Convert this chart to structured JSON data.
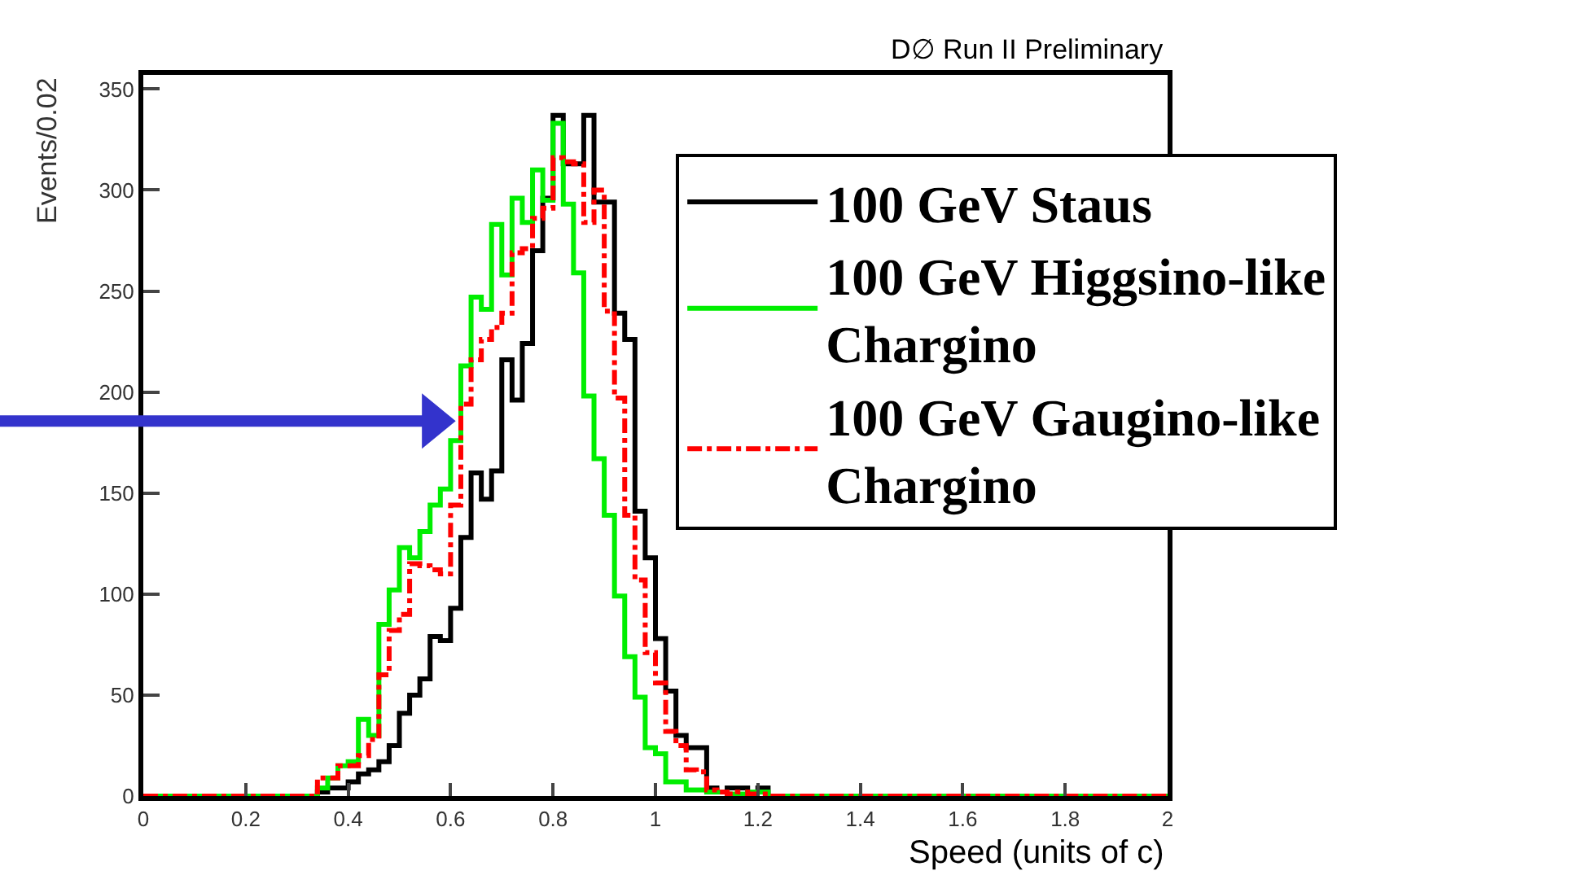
{
  "chart_data": {
    "type": "histogram",
    "title": "D∅ Run II Preliminary",
    "xlabel": "Speed (units of c)",
    "ylabel": "Events/0.02",
    "bins": [
      0,
      0.02,
      0.04,
      0.06,
      0.08,
      0.1,
      0.12,
      0.14,
      0.16,
      0.18,
      0.2,
      0.22,
      0.24,
      0.26,
      0.28,
      0.3,
      0.32,
      0.34,
      0.36,
      0.38,
      0.4,
      0.42,
      0.44,
      0.46,
      0.48,
      0.5,
      0.52,
      0.54,
      0.56,
      0.58,
      0.6,
      0.62,
      0.64,
      0.66,
      0.68,
      0.7,
      0.72,
      0.74,
      0.76,
      0.78,
      0.8,
      0.82,
      0.84,
      0.86,
      0.88,
      0.9,
      0.92,
      0.94,
      0.96,
      0.98,
      1,
      1.02,
      1.04,
      1.06,
      1.08,
      1.1,
      1.12,
      1.14,
      1.16,
      1.18,
      1.2,
      1.22,
      1.24,
      1.26,
      1.28,
      1.3,
      1.32,
      1.34,
      1.36,
      1.38,
      1.4,
      1.42,
      1.44,
      1.46,
      1.48,
      1.5,
      1.52,
      1.54,
      1.56,
      1.58,
      1.6,
      1.62,
      1.64,
      1.66,
      1.68,
      1.7,
      1.72,
      1.74,
      1.76,
      1.78,
      1.8,
      1.82,
      1.84,
      1.86,
      1.88,
      1.9,
      1.92,
      1.94,
      1.96,
      1.98,
      2
    ],
    "series": [
      {
        "name": "100 GeV Staus",
        "color": "#000000",
        "line_style": "solid",
        "values": [
          0,
          0,
          0,
          0,
          0,
          0,
          0,
          0,
          0,
          0,
          0,
          0,
          0,
          0,
          0,
          0,
          0,
          2,
          4,
          4,
          7,
          11,
          13,
          17,
          25,
          41,
          50,
          58,
          79,
          77,
          93,
          128,
          160,
          147,
          161,
          216,
          196,
          224,
          270,
          296,
          337,
          313,
          313,
          337,
          294,
          294,
          239,
          226,
          141,
          118,
          78,
          52,
          30,
          24,
          24,
          4,
          2,
          4,
          4,
          2,
          4,
          0,
          0,
          0,
          0,
          0,
          0,
          0,
          0,
          0,
          0,
          0,
          0,
          0,
          0,
          0,
          0,
          0,
          0,
          0,
          0,
          0,
          0,
          0,
          0,
          0,
          0,
          0,
          0,
          0,
          0,
          0,
          0,
          0,
          0,
          0,
          0,
          0,
          0,
          0
        ]
      },
      {
        "name": "100 GeV Higgsino-like Chargino",
        "color": "#00ee00",
        "line_style": "solid",
        "values": [
          0,
          0,
          0,
          0,
          0,
          0,
          0,
          0,
          0,
          0,
          0,
          0,
          0,
          0,
          0,
          0,
          0,
          4,
          9,
          15,
          17,
          38,
          30,
          85,
          102,
          123,
          118,
          131,
          144,
          152,
          176,
          213,
          247,
          241,
          283,
          258,
          296,
          284,
          310,
          295,
          333,
          293,
          259,
          198,
          167,
          139,
          99,
          69,
          49,
          24,
          21,
          7,
          7,
          3,
          3,
          2,
          2,
          1,
          1,
          2,
          2,
          0,
          0,
          0,
          0,
          0,
          0,
          0,
          0,
          0,
          0,
          0,
          0,
          0,
          0,
          0,
          0,
          0,
          0,
          0,
          0,
          0,
          0,
          0,
          0,
          0,
          0,
          0,
          0,
          0,
          0,
          0,
          0,
          0,
          0,
          0,
          0,
          0,
          0,
          0
        ]
      },
      {
        "name": "100 GeV Gaugino-like Chargino",
        "color": "#ff0000",
        "line_style": "dashed",
        "values": [
          0,
          0,
          0,
          0,
          0,
          0,
          0,
          0,
          0,
          0,
          0,
          0,
          0,
          0,
          0,
          0,
          0,
          9,
          9,
          15,
          15,
          20,
          28,
          60,
          82,
          90,
          115,
          114,
          112,
          110,
          144,
          194,
          216,
          226,
          232,
          239,
          269,
          271,
          286,
          291,
          316,
          314,
          313,
          284,
          300,
          240,
          197,
          139,
          107,
          71,
          56,
          32,
          25,
          13,
          12,
          3,
          2,
          1,
          2,
          1,
          1,
          0,
          0,
          0,
          0,
          0,
          0,
          0,
          0,
          0,
          0,
          0,
          0,
          0,
          0,
          0,
          0,
          0,
          0,
          0,
          0,
          0,
          0,
          0,
          0,
          0,
          0,
          0,
          0,
          0,
          0,
          0,
          0,
          0,
          0,
          0,
          0,
          0,
          0,
          0
        ]
      }
    ],
    "xlim": [
      0,
      2
    ],
    "xticks": [
      0,
      0.2,
      0.4,
      0.6,
      0.8,
      1,
      1.2,
      1.4,
      1.6,
      1.8,
      2
    ],
    "ylim": [
      0,
      357
    ],
    "yticks": [
      0,
      50,
      100,
      150,
      200,
      250,
      300,
      350
    ],
    "legend": "top right"
  }
}
